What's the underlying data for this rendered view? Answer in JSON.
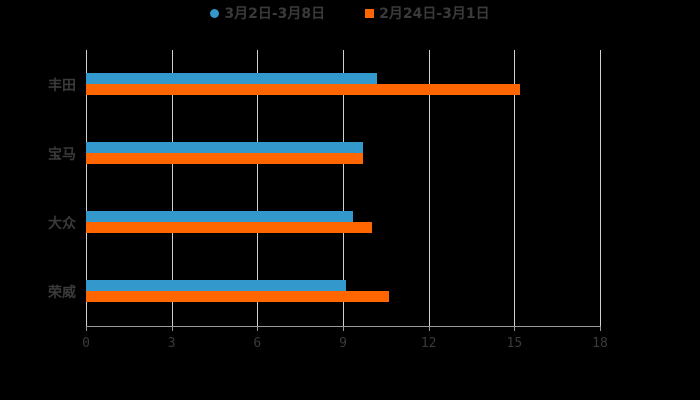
{
  "chart_data": {
    "type": "bar",
    "orientation": "horizontal",
    "title": "",
    "categories": [
      "丰田",
      "宝马",
      "大众",
      "荣威"
    ],
    "series": [
      {
        "name": "3月2日-3月8日",
        "color": "#3399cc",
        "values": [
          10.2,
          9.7,
          9.35,
          9.1
        ]
      },
      {
        "name": "2月24日-3月1日",
        "color": "#ff6600",
        "values": [
          15.2,
          9.7,
          10.0,
          10.6
        ]
      }
    ],
    "xlabel": "",
    "ylabel": "",
    "xlim": [
      0,
      18
    ],
    "x_ticks": [
      "0",
      "3",
      "6",
      "9",
      "12",
      "15",
      "18"
    ],
    "grid": true,
    "legend_position": "top"
  },
  "legend": {
    "series0": "3月2日-3月8日",
    "series1": "2月24日-3月1日"
  },
  "colors": {
    "series0": "#3399cc",
    "series1": "#ff6600",
    "background": "#000000"
  }
}
